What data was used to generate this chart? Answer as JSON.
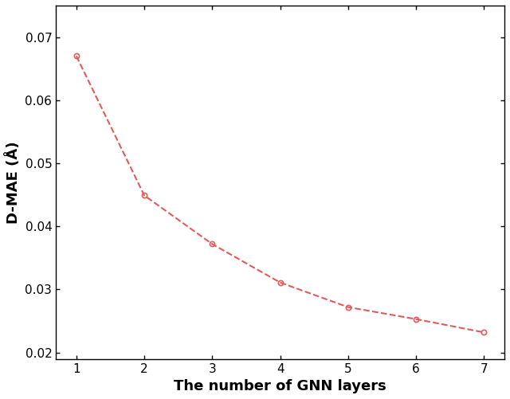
{
  "x": [
    1,
    2,
    3,
    4,
    5,
    6,
    7
  ],
  "y": [
    0.067,
    0.0449,
    0.0372,
    0.0311,
    0.0272,
    0.0253,
    0.0232
  ],
  "line_color": "#e05c5c",
  "marker_color": "#e05c5c",
  "marker_style": "o",
  "marker_size": 4.5,
  "line_style": "--",
  "line_width": 1.5,
  "xlabel": "The number of GNN layers",
  "ylabel": "D-MAE (Å)",
  "xlabel_fontsize": 13,
  "ylabel_fontsize": 13,
  "tick_fontsize": 11,
  "xlim": [
    0.7,
    7.3
  ],
  "ylim": [
    0.019,
    0.075
  ],
  "yticks": [
    0.02,
    0.03,
    0.04,
    0.05,
    0.06,
    0.07
  ],
  "xticks": [
    1,
    2,
    3,
    4,
    5,
    6,
    7
  ],
  "background_color": "#ffffff",
  "figsize": [
    6.4,
    5.01
  ],
  "dpi": 100
}
